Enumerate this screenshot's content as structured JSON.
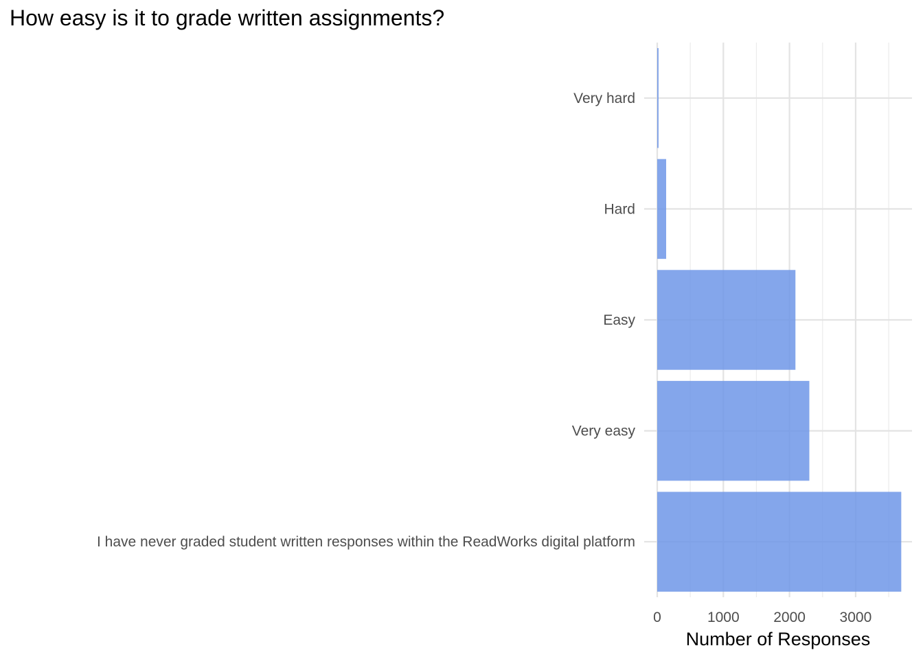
{
  "chart_data": {
    "type": "bar",
    "orientation": "horizontal",
    "title": "How easy is it to grade written assignments?",
    "xlabel": "Number of Responses",
    "ylabel": "",
    "categories": [
      "Very hard",
      "Hard",
      "Easy",
      "Very easy",
      "I have never graded student written responses within the ReadWorks digital platform"
    ],
    "values": [
      20,
      135,
      2090,
      2300,
      3690
    ],
    "xlim": [
      0,
      3850
    ],
    "xticks": [
      0,
      1000,
      2000,
      3000
    ],
    "xtick_labels": [
      "0",
      "1000",
      "2000",
      "3000"
    ],
    "bar_color": "#6f97e8",
    "grid": true,
    "legend": "none"
  }
}
